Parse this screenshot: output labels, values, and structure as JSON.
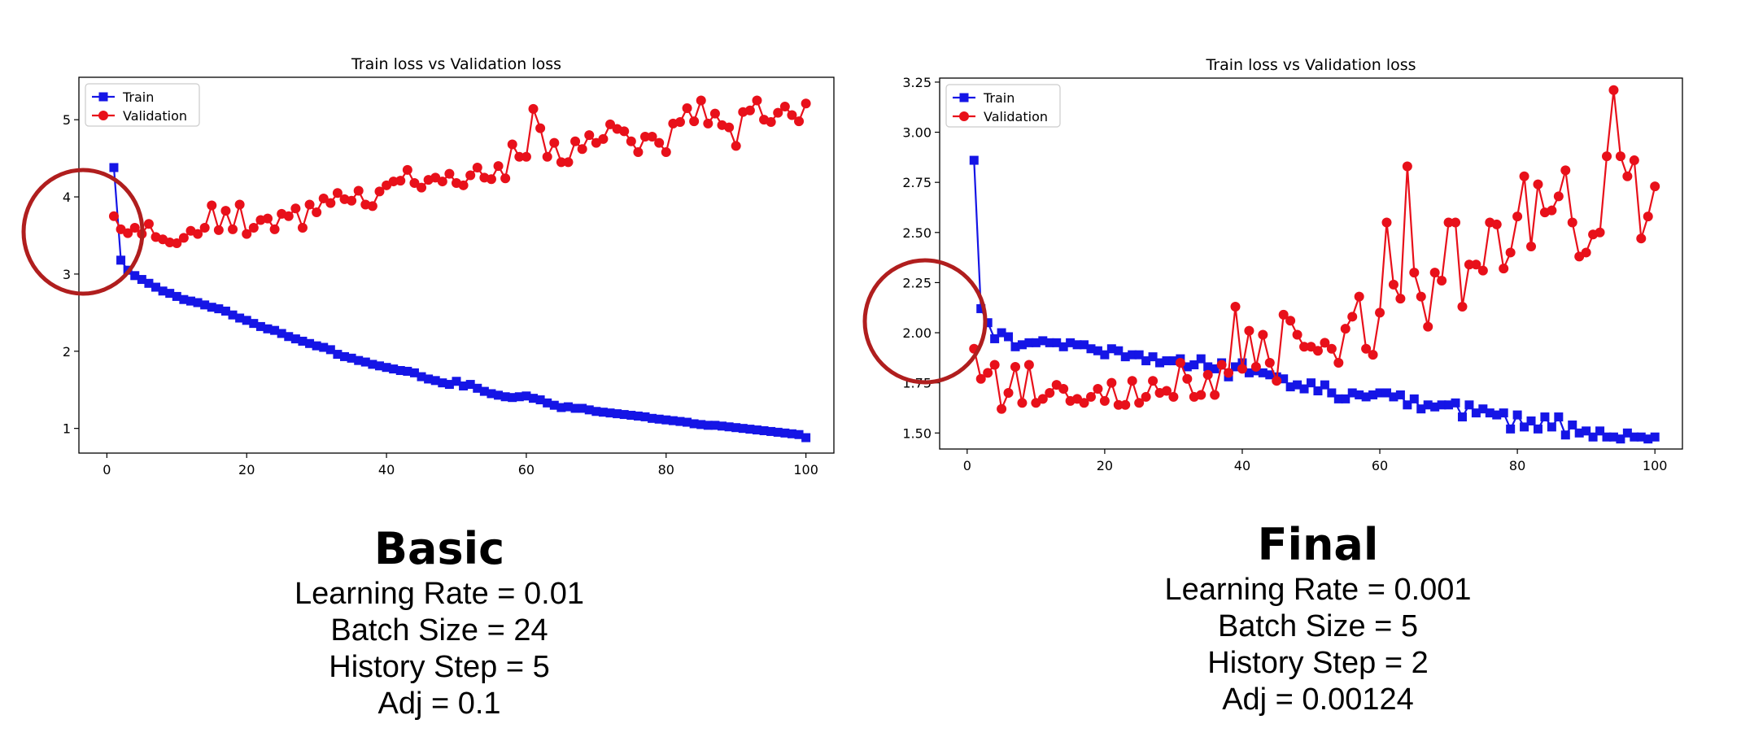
{
  "charts": [
    {
      "panel_id": "left",
      "chart_data": {
        "type": "line",
        "title": "Train loss vs Validation loss",
        "xlabel": "",
        "ylabel": "",
        "xlim": [
          -4,
          104
        ],
        "ylim": [
          0.68,
          5.55
        ],
        "xticks": [
          0,
          20,
          40,
          60,
          80,
          100
        ],
        "xtick_labels": [
          "0",
          "20",
          "40",
          "60",
          "80",
          "100"
        ],
        "yticks": [
          1,
          2,
          3,
          4,
          5
        ],
        "ytick_labels": [
          "1",
          "2",
          "3",
          "4",
          "5"
        ],
        "grid": false,
        "legend": "top-left",
        "series": [
          {
            "name": "Train",
            "color": "#1515e6",
            "marker": "square",
            "x": [
              1,
              2,
              3,
              4,
              5,
              6,
              7,
              8,
              9,
              10,
              11,
              12,
              13,
              14,
              15,
              16,
              17,
              18,
              19,
              20,
              21,
              22,
              23,
              24,
              25,
              26,
              27,
              28,
              29,
              30,
              31,
              32,
              33,
              34,
              35,
              36,
              37,
              38,
              39,
              40,
              41,
              42,
              43,
              44,
              45,
              46,
              47,
              48,
              49,
              50,
              51,
              52,
              53,
              54,
              55,
              56,
              57,
              58,
              59,
              60,
              61,
              62,
              63,
              64,
              65,
              66,
              67,
              68,
              69,
              70,
              71,
              72,
              73,
              74,
              75,
              76,
              77,
              78,
              79,
              80,
              81,
              82,
              83,
              84,
              85,
              86,
              87,
              88,
              89,
              90,
              91,
              92,
              93,
              94,
              95,
              96,
              97,
              98,
              99,
              100
            ],
            "values": [
              4.38,
              3.18,
              3.05,
              2.98,
              2.93,
              2.88,
              2.83,
              2.78,
              2.75,
              2.71,
              2.67,
              2.65,
              2.63,
              2.6,
              2.57,
              2.55,
              2.52,
              2.47,
              2.43,
              2.4,
              2.36,
              2.32,
              2.29,
              2.27,
              2.23,
              2.19,
              2.16,
              2.13,
              2.1,
              2.07,
              2.05,
              2.02,
              1.96,
              1.93,
              1.91,
              1.88,
              1.86,
              1.83,
              1.81,
              1.79,
              1.77,
              1.75,
              1.74,
              1.72,
              1.67,
              1.64,
              1.62,
              1.59,
              1.57,
              1.61,
              1.55,
              1.57,
              1.52,
              1.48,
              1.45,
              1.43,
              1.41,
              1.4,
              1.41,
              1.42,
              1.39,
              1.37,
              1.33,
              1.3,
              1.27,
              1.28,
              1.26,
              1.26,
              1.24,
              1.22,
              1.21,
              1.2,
              1.19,
              1.18,
              1.17,
              1.16,
              1.15,
              1.13,
              1.12,
              1.11,
              1.1,
              1.09,
              1.08,
              1.06,
              1.05,
              1.04,
              1.04,
              1.03,
              1.02,
              1.01,
              1.0,
              0.99,
              0.98,
              0.97,
              0.96,
              0.95,
              0.94,
              0.93,
              0.92,
              0.88
            ]
          },
          {
            "name": "Validation",
            "color": "#e8101a",
            "marker": "circle",
            "x": [
              1,
              2,
              3,
              4,
              5,
              6,
              7,
              8,
              9,
              10,
              11,
              12,
              13,
              14,
              15,
              16,
              17,
              18,
              19,
              20,
              21,
              22,
              23,
              24,
              25,
              26,
              27,
              28,
              29,
              30,
              31,
              32,
              33,
              34,
              35,
              36,
              37,
              38,
              39,
              40,
              41,
              42,
              43,
              44,
              45,
              46,
              47,
              48,
              49,
              50,
              51,
              52,
              53,
              54,
              55,
              56,
              57,
              58,
              59,
              60,
              61,
              62,
              63,
              64,
              65,
              66,
              67,
              68,
              69,
              70,
              71,
              72,
              73,
              74,
              75,
              76,
              77,
              78,
              79,
              80,
              81,
              82,
              83,
              84,
              85,
              86,
              87,
              88,
              89,
              90,
              91,
              92,
              93,
              94,
              95,
              96,
              97,
              98,
              99,
              100
            ],
            "values": [
              3.75,
              3.58,
              3.53,
              3.6,
              3.52,
              3.65,
              3.48,
              3.45,
              3.41,
              3.4,
              3.47,
              3.56,
              3.52,
              3.6,
              3.89,
              3.57,
              3.82,
              3.58,
              3.9,
              3.52,
              3.6,
              3.7,
              3.72,
              3.58,
              3.78,
              3.75,
              3.85,
              3.6,
              3.9,
              3.8,
              3.98,
              3.92,
              4.05,
              3.97,
              3.95,
              4.08,
              3.9,
              3.88,
              4.07,
              4.15,
              4.2,
              4.21,
              4.35,
              4.18,
              4.12,
              4.22,
              4.25,
              4.2,
              4.3,
              4.18,
              4.15,
              4.28,
              4.38,
              4.25,
              4.23,
              4.4,
              4.24,
              4.68,
              4.52,
              4.52,
              5.14,
              4.89,
              4.52,
              4.7,
              4.45,
              4.45,
              4.72,
              4.62,
              4.8,
              4.7,
              4.75,
              4.94,
              4.88,
              4.85,
              4.72,
              4.58,
              4.78,
              4.78,
              4.7,
              4.58,
              4.95,
              4.97,
              5.15,
              4.98,
              5.25,
              4.95,
              5.08,
              4.93,
              4.9,
              4.66,
              5.1,
              5.12,
              5.25,
              5.0,
              4.97,
              5.09,
              5.17,
              5.06,
              4.98,
              5.21
            ]
          }
        ]
      },
      "caption": {
        "heading": "Basic",
        "lines": [
          "Learning Rate = 0.01",
          "Batch Size = 24",
          "History Step = 5",
          "Adj = 0.1"
        ]
      }
    },
    {
      "panel_id": "right",
      "chart_data": {
        "type": "line",
        "title": "Train loss vs Validation loss",
        "xlabel": "",
        "ylabel": "",
        "xlim": [
          -4,
          104
        ],
        "ylim": [
          1.42,
          3.27
        ],
        "xticks": [
          0,
          20,
          40,
          60,
          80,
          100
        ],
        "xtick_labels": [
          "0",
          "20",
          "40",
          "60",
          "80",
          "100"
        ],
        "yticks": [
          1.5,
          1.75,
          2.0,
          2.25,
          2.5,
          2.75,
          3.0,
          3.25
        ],
        "ytick_labels": [
          "1.50",
          "1.75",
          "2.00",
          "2.25",
          "2.50",
          "2.75",
          "3.00",
          "3.25"
        ],
        "grid": false,
        "legend": "top-left",
        "series": [
          {
            "name": "Train",
            "color": "#1515e6",
            "marker": "square",
            "x": [
              1,
              2,
              3,
              4,
              5,
              6,
              7,
              8,
              9,
              10,
              11,
              12,
              13,
              14,
              15,
              16,
              17,
              18,
              19,
              20,
              21,
              22,
              23,
              24,
              25,
              26,
              27,
              28,
              29,
              30,
              31,
              32,
              33,
              34,
              35,
              36,
              37,
              38,
              39,
              40,
              41,
              42,
              43,
              44,
              45,
              46,
              47,
              48,
              49,
              50,
              51,
              52,
              53,
              54,
              55,
              56,
              57,
              58,
              59,
              60,
              61,
              62,
              63,
              64,
              65,
              66,
              67,
              68,
              69,
              70,
              71,
              72,
              73,
              74,
              75,
              76,
              77,
              78,
              79,
              80,
              81,
              82,
              83,
              84,
              85,
              86,
              87,
              88,
              89,
              90,
              91,
              92,
              93,
              94,
              95,
              96,
              97,
              98,
              99,
              100
            ],
            "values": [
              2.86,
              2.12,
              2.05,
              1.97,
              2.0,
              1.98,
              1.93,
              1.94,
              1.95,
              1.95,
              1.96,
              1.95,
              1.95,
              1.93,
              1.95,
              1.94,
              1.94,
              1.92,
              1.91,
              1.89,
              1.92,
              1.91,
              1.88,
              1.89,
              1.89,
              1.86,
              1.88,
              1.85,
              1.86,
              1.86,
              1.87,
              1.83,
              1.84,
              1.87,
              1.83,
              1.82,
              1.85,
              1.78,
              1.83,
              1.85,
              1.8,
              1.81,
              1.8,
              1.79,
              1.78,
              1.77,
              1.73,
              1.74,
              1.72,
              1.75,
              1.71,
              1.74,
              1.7,
              1.67,
              1.67,
              1.7,
              1.69,
              1.68,
              1.69,
              1.7,
              1.7,
              1.68,
              1.69,
              1.64,
              1.67,
              1.62,
              1.64,
              1.63,
              1.64,
              1.64,
              1.65,
              1.58,
              1.64,
              1.6,
              1.62,
              1.6,
              1.59,
              1.6,
              1.52,
              1.59,
              1.53,
              1.56,
              1.52,
              1.58,
              1.53,
              1.58,
              1.49,
              1.54,
              1.5,
              1.51,
              1.48,
              1.51,
              1.48,
              1.48,
              1.47,
              1.5,
              1.48,
              1.48,
              1.47,
              1.48
            ]
          },
          {
            "name": "Validation",
            "color": "#e8101a",
            "marker": "circle",
            "x": [
              1,
              2,
              3,
              4,
              5,
              6,
              7,
              8,
              9,
              10,
              11,
              12,
              13,
              14,
              15,
              16,
              17,
              18,
              19,
              20,
              21,
              22,
              23,
              24,
              25,
              26,
              27,
              28,
              29,
              30,
              31,
              32,
              33,
              34,
              35,
              36,
              37,
              38,
              39,
              40,
              41,
              42,
              43,
              44,
              45,
              46,
              47,
              48,
              49,
              50,
              51,
              52,
              53,
              54,
              55,
              56,
              57,
              58,
              59,
              60,
              61,
              62,
              63,
              64,
              65,
              66,
              67,
              68,
              69,
              70,
              71,
              72,
              73,
              74,
              75,
              76,
              77,
              78,
              79,
              80,
              81,
              82,
              83,
              84,
              85,
              86,
              87,
              88,
              89,
              90,
              91,
              92,
              93,
              94,
              95,
              96,
              97,
              98,
              99,
              100
            ],
            "values": [
              1.92,
              1.77,
              1.8,
              1.84,
              1.62,
              1.7,
              1.83,
              1.65,
              1.84,
              1.65,
              1.67,
              1.7,
              1.74,
              1.72,
              1.66,
              1.67,
              1.65,
              1.68,
              1.72,
              1.66,
              1.75,
              1.64,
              1.64,
              1.76,
              1.65,
              1.68,
              1.76,
              1.7,
              1.71,
              1.68,
              1.85,
              1.77,
              1.68,
              1.69,
              1.79,
              1.69,
              1.84,
              1.8,
              2.13,
              1.82,
              2.01,
              1.83,
              1.99,
              1.85,
              1.76,
              2.09,
              2.06,
              1.99,
              1.93,
              1.93,
              1.91,
              1.95,
              1.92,
              1.85,
              2.02,
              2.08,
              2.18,
              1.92,
              1.89,
              2.1,
              2.55,
              2.24,
              2.17,
              2.83,
              2.3,
              2.18,
              2.03,
              2.3,
              2.26,
              2.55,
              2.55,
              2.13,
              2.34,
              2.34,
              2.31,
              2.55,
              2.54,
              2.32,
              2.4,
              2.58,
              2.78,
              2.43,
              2.74,
              2.6,
              2.61,
              2.68,
              2.81,
              2.55,
              2.38,
              2.4,
              2.49,
              2.5,
              2.88,
              3.21,
              2.88,
              2.78,
              2.86,
              2.47,
              2.58,
              2.73
            ]
          }
        ]
      },
      "caption": {
        "heading": "Final",
        "lines": [
          "Learning Rate = 0.001",
          "Batch Size = 5",
          "History Step = 2",
          "Adj = 0.00124"
        ]
      }
    }
  ],
  "annotation_color": "#b01e1e"
}
